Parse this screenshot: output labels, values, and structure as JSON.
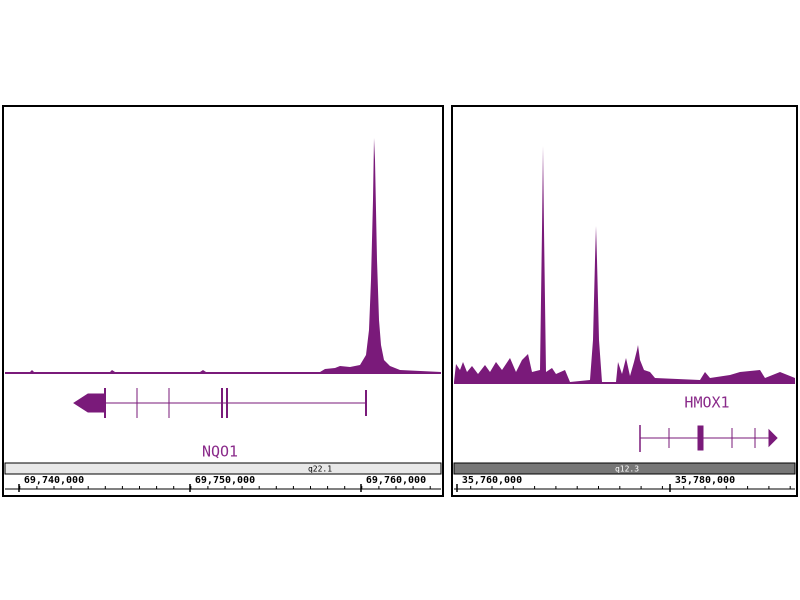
{
  "panels": [
    {
      "gene": "NQO1",
      "band": "q22.1",
      "ticks": [
        "69,740,000",
        "69,750,000",
        "69,760,000"
      ]
    },
    {
      "gene": "HMOX1",
      "band": "q12.3",
      "ticks": [
        "35,760,000",
        "35,780,000"
      ]
    }
  ]
}
